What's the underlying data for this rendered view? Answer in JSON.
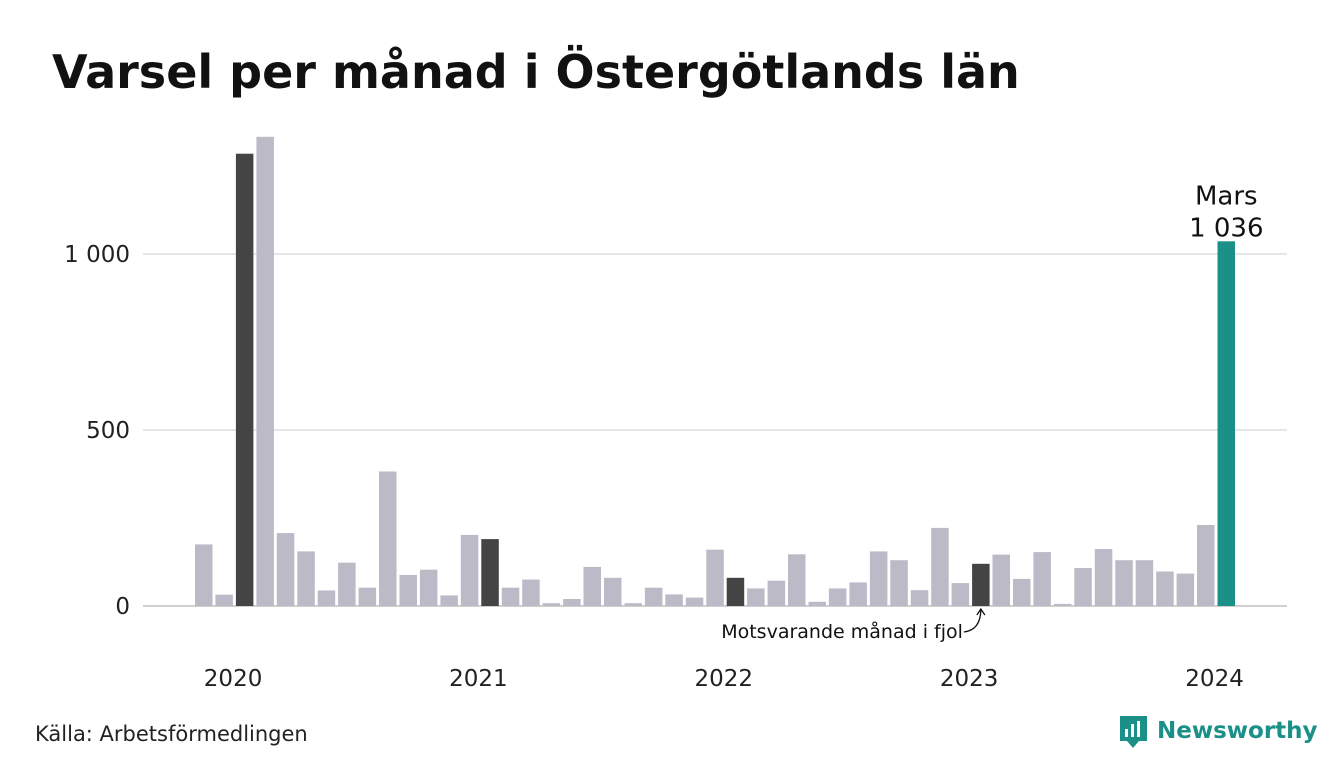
{
  "chart_data": {
    "type": "bar",
    "title": "Varsel per månad i Östergötlands län",
    "source": "Källa: Arbetsförmedlingen",
    "brand": "Newsworthy",
    "x_tick_labels": [
      "2020",
      "2021",
      "2022",
      "2023",
      "2024"
    ],
    "y_ticks": [
      0,
      500,
      1000
    ],
    "y_tick_labels": [
      "0",
      "500",
      "1 000"
    ],
    "ylim": [
      0,
      1380
    ],
    "grid": true,
    "highlight": {
      "label": "Mars",
      "value_label": "1 036",
      "color": "#1a9088"
    },
    "callout": {
      "text": "Motsvarande månad i fjol"
    },
    "colors": {
      "default": "#bcbac7",
      "same_month": "#444444",
      "latest": "#1a9088"
    },
    "categories": [
      "2020-01",
      "2020-02",
      "2020-03",
      "2020-04",
      "2020-05",
      "2020-06",
      "2020-07",
      "2020-08",
      "2020-09",
      "2020-10",
      "2020-11",
      "2020-12",
      "2021-01",
      "2021-02",
      "2021-03",
      "2021-04",
      "2021-05",
      "2021-06",
      "2021-07",
      "2021-08",
      "2021-09",
      "2021-10",
      "2021-11",
      "2021-12",
      "2022-01",
      "2022-02",
      "2022-03",
      "2022-04",
      "2022-05",
      "2022-06",
      "2022-07",
      "2022-08",
      "2022-09",
      "2022-10",
      "2022-11",
      "2022-12",
      "2023-01",
      "2023-02",
      "2023-03",
      "2023-04",
      "2023-05",
      "2023-06",
      "2023-07",
      "2023-08",
      "2023-09",
      "2023-10",
      "2023-11",
      "2023-12",
      "2024-01",
      "2024-02",
      "2024-03"
    ],
    "values": [
      175,
      32,
      1285,
      1333,
      207,
      155,
      44,
      123,
      52,
      382,
      88,
      103,
      30,
      202,
      190,
      52,
      75,
      8,
      20,
      111,
      80,
      8,
      52,
      33,
      24,
      160,
      80,
      50,
      72,
      147,
      12,
      50,
      67,
      155,
      130,
      45,
      222,
      65,
      120,
      146,
      77,
      153,
      6,
      108,
      162,
      130,
      130,
      98,
      92,
      230,
      1036
    ],
    "bar_kinds": [
      "default",
      "default",
      "same_month",
      "default",
      "default",
      "default",
      "default",
      "default",
      "default",
      "default",
      "default",
      "default",
      "default",
      "default",
      "same_month",
      "default",
      "default",
      "default",
      "default",
      "default",
      "default",
      "default",
      "default",
      "default",
      "default",
      "default",
      "same_month",
      "default",
      "default",
      "default",
      "default",
      "default",
      "default",
      "default",
      "default",
      "default",
      "default",
      "default",
      "same_month",
      "default",
      "default",
      "default",
      "default",
      "default",
      "default",
      "default",
      "default",
      "default",
      "default",
      "default",
      "latest"
    ]
  }
}
